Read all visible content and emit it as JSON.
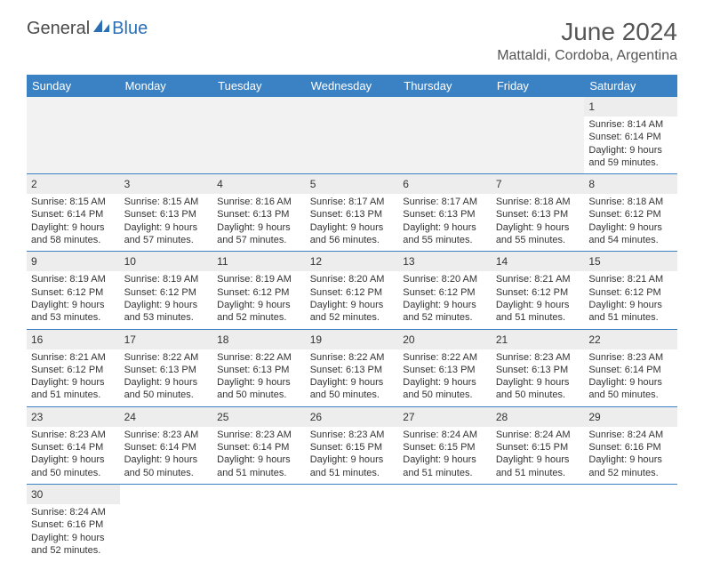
{
  "logo": {
    "text1": "General",
    "text2": "Blue"
  },
  "title": "June 2024",
  "location": "Mattaldi, Cordoba, Argentina",
  "colors": {
    "header_bg": "#3b82c4",
    "header_text": "#ffffff",
    "daynum_bg": "#ededed",
    "border": "#3b82c4",
    "text": "#333333"
  },
  "day_headers": [
    "Sunday",
    "Monday",
    "Tuesday",
    "Wednesday",
    "Thursday",
    "Friday",
    "Saturday"
  ],
  "leading_blanks": 6,
  "days": [
    {
      "n": "1",
      "sunrise": "8:14 AM",
      "sunset": "6:14 PM",
      "day_h": "9",
      "day_m": "59"
    },
    {
      "n": "2",
      "sunrise": "8:15 AM",
      "sunset": "6:14 PM",
      "day_h": "9",
      "day_m": "58"
    },
    {
      "n": "3",
      "sunrise": "8:15 AM",
      "sunset": "6:13 PM",
      "day_h": "9",
      "day_m": "57"
    },
    {
      "n": "4",
      "sunrise": "8:16 AM",
      "sunset": "6:13 PM",
      "day_h": "9",
      "day_m": "57"
    },
    {
      "n": "5",
      "sunrise": "8:17 AM",
      "sunset": "6:13 PM",
      "day_h": "9",
      "day_m": "56"
    },
    {
      "n": "6",
      "sunrise": "8:17 AM",
      "sunset": "6:13 PM",
      "day_h": "9",
      "day_m": "55"
    },
    {
      "n": "7",
      "sunrise": "8:18 AM",
      "sunset": "6:13 PM",
      "day_h": "9",
      "day_m": "55"
    },
    {
      "n": "8",
      "sunrise": "8:18 AM",
      "sunset": "6:12 PM",
      "day_h": "9",
      "day_m": "54"
    },
    {
      "n": "9",
      "sunrise": "8:19 AM",
      "sunset": "6:12 PM",
      "day_h": "9",
      "day_m": "53"
    },
    {
      "n": "10",
      "sunrise": "8:19 AM",
      "sunset": "6:12 PM",
      "day_h": "9",
      "day_m": "53"
    },
    {
      "n": "11",
      "sunrise": "8:19 AM",
      "sunset": "6:12 PM",
      "day_h": "9",
      "day_m": "52"
    },
    {
      "n": "12",
      "sunrise": "8:20 AM",
      "sunset": "6:12 PM",
      "day_h": "9",
      "day_m": "52"
    },
    {
      "n": "13",
      "sunrise": "8:20 AM",
      "sunset": "6:12 PM",
      "day_h": "9",
      "day_m": "52"
    },
    {
      "n": "14",
      "sunrise": "8:21 AM",
      "sunset": "6:12 PM",
      "day_h": "9",
      "day_m": "51"
    },
    {
      "n": "15",
      "sunrise": "8:21 AM",
      "sunset": "6:12 PM",
      "day_h": "9",
      "day_m": "51"
    },
    {
      "n": "16",
      "sunrise": "8:21 AM",
      "sunset": "6:12 PM",
      "day_h": "9",
      "day_m": "51"
    },
    {
      "n": "17",
      "sunrise": "8:22 AM",
      "sunset": "6:13 PM",
      "day_h": "9",
      "day_m": "50"
    },
    {
      "n": "18",
      "sunrise": "8:22 AM",
      "sunset": "6:13 PM",
      "day_h": "9",
      "day_m": "50"
    },
    {
      "n": "19",
      "sunrise": "8:22 AM",
      "sunset": "6:13 PM",
      "day_h": "9",
      "day_m": "50"
    },
    {
      "n": "20",
      "sunrise": "8:22 AM",
      "sunset": "6:13 PM",
      "day_h": "9",
      "day_m": "50"
    },
    {
      "n": "21",
      "sunrise": "8:23 AM",
      "sunset": "6:13 PM",
      "day_h": "9",
      "day_m": "50"
    },
    {
      "n": "22",
      "sunrise": "8:23 AM",
      "sunset": "6:14 PM",
      "day_h": "9",
      "day_m": "50"
    },
    {
      "n": "23",
      "sunrise": "8:23 AM",
      "sunset": "6:14 PM",
      "day_h": "9",
      "day_m": "50"
    },
    {
      "n": "24",
      "sunrise": "8:23 AM",
      "sunset": "6:14 PM",
      "day_h": "9",
      "day_m": "50"
    },
    {
      "n": "25",
      "sunrise": "8:23 AM",
      "sunset": "6:14 PM",
      "day_h": "9",
      "day_m": "51"
    },
    {
      "n": "26",
      "sunrise": "8:23 AM",
      "sunset": "6:15 PM",
      "day_h": "9",
      "day_m": "51"
    },
    {
      "n": "27",
      "sunrise": "8:24 AM",
      "sunset": "6:15 PM",
      "day_h": "9",
      "day_m": "51"
    },
    {
      "n": "28",
      "sunrise": "8:24 AM",
      "sunset": "6:15 PM",
      "day_h": "9",
      "day_m": "51"
    },
    {
      "n": "29",
      "sunrise": "8:24 AM",
      "sunset": "6:16 PM",
      "day_h": "9",
      "day_m": "52"
    },
    {
      "n": "30",
      "sunrise": "8:24 AM",
      "sunset": "6:16 PM",
      "day_h": "9",
      "day_m": "52"
    }
  ],
  "labels": {
    "sunrise": "Sunrise:",
    "sunset": "Sunset:",
    "daylight_pre": "Daylight:",
    "hours_word": "hours",
    "and_word": "and",
    "minutes_word": "minutes."
  }
}
